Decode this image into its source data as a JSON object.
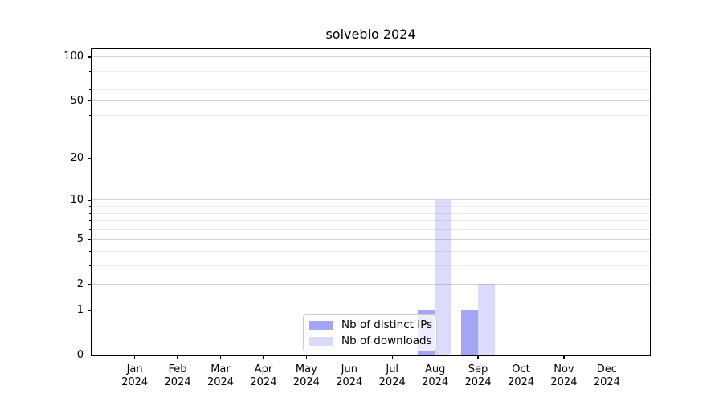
{
  "chart_data": {
    "type": "bar",
    "title": "solvebio 2024",
    "categories": [
      "Jan",
      "Feb",
      "Mar",
      "Apr",
      "May",
      "Jun",
      "Jul",
      "Aug",
      "Sep",
      "Oct",
      "Nov",
      "Dec"
    ],
    "x_year_label": "2024",
    "series": [
      {
        "key": "distinct-ips",
        "name": "Nb of distinct IPs",
        "legend_color": "#a5a5f5",
        "fill": "rgba(110,110,240,0.62)",
        "values": [
          0,
          0,
          0,
          0,
          0,
          0,
          0,
          1,
          1,
          0,
          0,
          0
        ]
      },
      {
        "key": "downloads",
        "name": "Nb of downloads",
        "legend_color": "#dadafb",
        "fill": "rgba(110,110,240,0.25)",
        "values": [
          0,
          0,
          0,
          0,
          0,
          0,
          0,
          10,
          2,
          0,
          0,
          0
        ]
      }
    ],
    "yscale": "log1p",
    "y_major_ticks": [
      0,
      1,
      2,
      5,
      10,
      20,
      50,
      100
    ],
    "y_minor_ticks": [
      3,
      4,
      6,
      7,
      8,
      9,
      30,
      40,
      60,
      70,
      80,
      90
    ],
    "ylim": [
      0,
      113
    ],
    "xlabel": "",
    "ylabel": "",
    "grid": "horizontal",
    "legend_position": "lower-center-inside",
    "colors": {
      "grid_major": "#d2d2d2",
      "grid_minor": "#ededed",
      "axis": "#000000",
      "legend_border": "#cccccc",
      "background": "#ffffff"
    }
  }
}
